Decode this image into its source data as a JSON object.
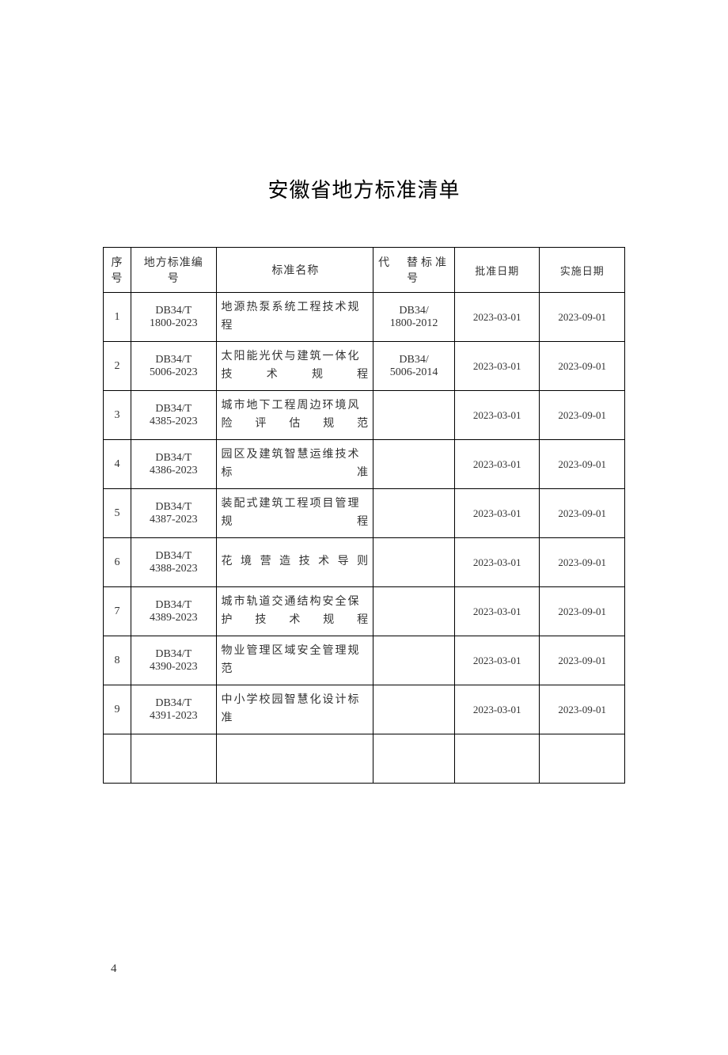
{
  "title": "安徽省地方标准清单",
  "page_number": "4",
  "table": {
    "headers": {
      "seq": "序号",
      "std_no": "地方标准编　号",
      "std_name": "标准名称",
      "replace": "代　替标准号",
      "approve_date": "批准日期",
      "impl_date": "实施日期"
    },
    "rows": [
      {
        "seq": "1",
        "std_no_l1": "DB34/T",
        "std_no_l2": "1800-2023",
        "std_name": "地源热泵系统工程技术规程",
        "replace_l1": "DB34/",
        "replace_l2": "1800-2012",
        "approve_date": "2023-03-01",
        "impl_date": "2023-09-01"
      },
      {
        "seq": "2",
        "std_no_l1": "DB34/T",
        "std_no_l2": "5006-2023",
        "std_name": "太阳能光伏与建筑一体化技术规程",
        "replace_l1": "DB34/",
        "replace_l2": "5006-2014",
        "approve_date": "2023-03-01",
        "impl_date": "2023-09-01"
      },
      {
        "seq": "3",
        "std_no_l1": "DB34/T",
        "std_no_l2": "4385-2023",
        "std_name": "城市地下工程周边环境风险评估规范",
        "replace_l1": "",
        "replace_l2": "",
        "approve_date": "2023-03-01",
        "impl_date": "2023-09-01"
      },
      {
        "seq": "4",
        "std_no_l1": "DB34/T",
        "std_no_l2": "4386-2023",
        "std_name": "园区及建筑智慧运维技术标准",
        "replace_l1": "",
        "replace_l2": "",
        "approve_date": "2023-03-01",
        "impl_date": "2023-09-01"
      },
      {
        "seq": "5",
        "std_no_l1": "DB34/T",
        "std_no_l2": "4387-2023",
        "std_name": "装配式建筑工程项目管理规程",
        "replace_l1": "",
        "replace_l2": "",
        "approve_date": "2023-03-01",
        "impl_date": "2023-09-01"
      },
      {
        "seq": "6",
        "std_no_l1": "DB34/T",
        "std_no_l2": "4388-2023",
        "std_name": "花境营造技术导则",
        "replace_l1": "",
        "replace_l2": "",
        "approve_date": "2023-03-01",
        "impl_date": "2023-09-01"
      },
      {
        "seq": "7",
        "std_no_l1": "DB34/T",
        "std_no_l2": "4389-2023",
        "std_name": "城市轨道交通结构安全保护技术规程",
        "replace_l1": "",
        "replace_l2": "",
        "approve_date": "2023-03-01",
        "impl_date": "2023-09-01"
      },
      {
        "seq": "8",
        "std_no_l1": "DB34/T",
        "std_no_l2": "4390-2023",
        "std_name": "物业管理区域安全管理规范",
        "replace_l1": "",
        "replace_l2": "",
        "approve_date": "2023-03-01",
        "impl_date": "2023-09-01"
      },
      {
        "seq": "9",
        "std_no_l1": "DB34/T",
        "std_no_l2": "4391-2023",
        "std_name": "中小学校园智慧化设计标准",
        "replace_l1": "",
        "replace_l2": "",
        "approve_date": "2023-03-01",
        "impl_date": "2023-09-01"
      }
    ]
  }
}
